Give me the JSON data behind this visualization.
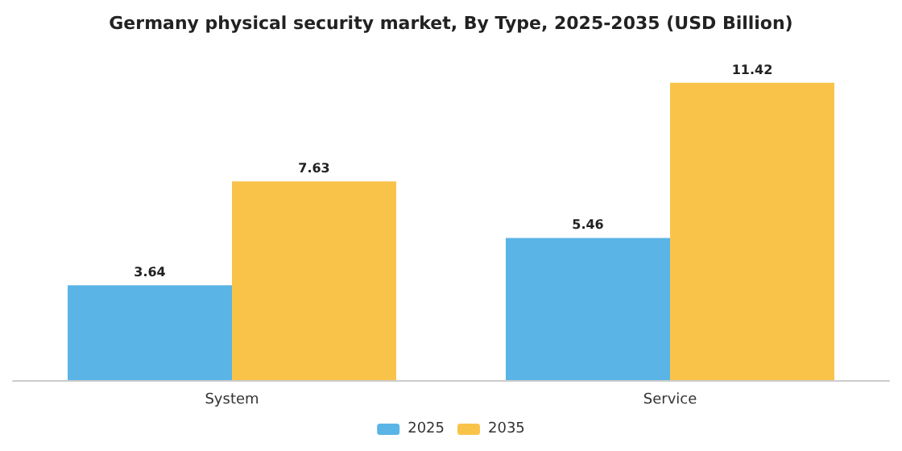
{
  "chart_data": {
    "type": "bar",
    "title": "Germany physical security market, By Type, 2025-2035 (USD Billion)",
    "categories": [
      "System",
      "Service"
    ],
    "series": [
      {
        "name": "2025",
        "color": "#5ab4e5",
        "values": [
          3.64,
          5.46
        ]
      },
      {
        "name": "2035",
        "color": "#f9c34a",
        "values": [
          7.63,
          11.42
        ]
      }
    ],
    "data_labels": true,
    "legend": "bottom"
  }
}
